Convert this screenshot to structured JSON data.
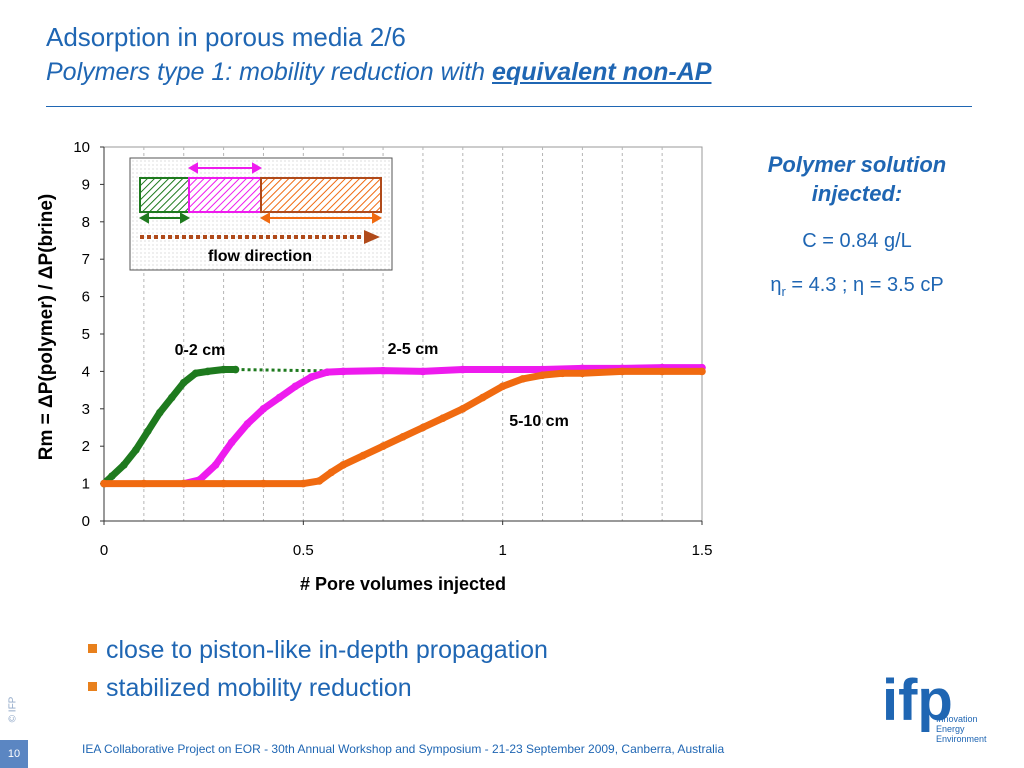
{
  "slide": {
    "title": "Adsorption in porous media 2/6",
    "subtitle_prefix": "Polymers type 1: mobility reduction with ",
    "subtitle_emph": "equivalent non-AP",
    "side_heading_1": "Polymer solution",
    "side_heading_2": "injected:",
    "concentration": "C = 0.84 g/L",
    "eta_r_symbol": "η",
    "eta_r_sub": "r",
    "eta_r_value": " = 4.3 ; ",
    "eta_symbol": "η",
    "eta_value": " = 3.5 cP",
    "bullets": [
      "close to piston-like in-depth propagation",
      "stabilized mobility reduction"
    ],
    "copyright": "© IFP",
    "page_number": "10",
    "footer": "IEA Collaborative Project on EOR - 30th Annual Workshop and Symposium - 21-23 September 2009, Canberra, Australia",
    "logo": {
      "mark": "ifp",
      "lines": [
        "Innovation",
        "Energy",
        "Environment"
      ]
    },
    "colors": {
      "blue": "#1f66b3",
      "green": "#1e7a1e",
      "magenta": "#ee1bee",
      "orange": "#f06a10",
      "brown": "#b04a1a"
    }
  },
  "chart_data": {
    "type": "scatter",
    "xlabel": "# Pore volumes injected",
    "ylabel": "Rm = ΔP(polymer) / ΔP(brine)",
    "xlim": [
      0,
      1.5
    ],
    "ylim": [
      0,
      10
    ],
    "x_ticks": [
      "0",
      "0.5",
      "1",
      "1.5"
    ],
    "y_ticks": [
      "0",
      "1",
      "2",
      "3",
      "4",
      "5",
      "6",
      "7",
      "8",
      "9",
      "10"
    ],
    "grid": "vertical dashed",
    "series": [
      {
        "name": "0-2 cm",
        "color": "#1e7a1e",
        "points": [
          [
            0.0,
            1.0
          ],
          [
            0.02,
            1.2
          ],
          [
            0.05,
            1.5
          ],
          [
            0.08,
            1.9
          ],
          [
            0.11,
            2.4
          ],
          [
            0.14,
            2.9
          ],
          [
            0.17,
            3.3
          ],
          [
            0.2,
            3.7
          ],
          [
            0.23,
            3.95
          ],
          [
            0.26,
            4.0
          ],
          [
            0.3,
            4.05
          ],
          [
            0.33,
            4.05
          ]
        ]
      },
      {
        "name": "2-5 cm",
        "color": "#ee1bee",
        "points": [
          [
            0.2,
            1.0
          ],
          [
            0.24,
            1.1
          ],
          [
            0.28,
            1.5
          ],
          [
            0.32,
            2.1
          ],
          [
            0.36,
            2.6
          ],
          [
            0.4,
            3.0
          ],
          [
            0.44,
            3.3
          ],
          [
            0.48,
            3.6
          ],
          [
            0.52,
            3.85
          ],
          [
            0.56,
            3.98
          ],
          [
            0.6,
            4.0
          ],
          [
            0.7,
            4.02
          ],
          [
            0.8,
            4.0
          ],
          [
            0.9,
            4.05
          ],
          [
            1.0,
            4.05
          ],
          [
            1.1,
            4.05
          ],
          [
            1.2,
            4.08
          ],
          [
            1.3,
            4.08
          ],
          [
            1.4,
            4.1
          ],
          [
            1.5,
            4.1
          ]
        ]
      },
      {
        "name": "5-10 cm",
        "color": "#f06a10",
        "points": [
          [
            0.0,
            1.0
          ],
          [
            0.1,
            1.0
          ],
          [
            0.2,
            1.0
          ],
          [
            0.3,
            1.0
          ],
          [
            0.4,
            1.0
          ],
          [
            0.5,
            1.0
          ],
          [
            0.54,
            1.07
          ],
          [
            0.57,
            1.3
          ],
          [
            0.6,
            1.5
          ],
          [
            0.65,
            1.75
          ],
          [
            0.7,
            2.0
          ],
          [
            0.75,
            2.25
          ],
          [
            0.8,
            2.5
          ],
          [
            0.85,
            2.75
          ],
          [
            0.9,
            3.0
          ],
          [
            0.95,
            3.3
          ],
          [
            1.0,
            3.6
          ],
          [
            1.05,
            3.8
          ],
          [
            1.1,
            3.9
          ],
          [
            1.15,
            3.95
          ],
          [
            1.2,
            3.95
          ],
          [
            1.3,
            4.0
          ],
          [
            1.4,
            4.0
          ],
          [
            1.5,
            4.0
          ]
        ]
      }
    ],
    "reference_line": {
      "color": "#1e7a1e",
      "from": [
        0.33,
        4.05
      ],
      "to": [
        0.65,
        4.0
      ]
    },
    "annotations": {
      "label_0_2": "0-2 cm",
      "label_2_5": "2-5 cm",
      "label_5_10": "5-10 cm",
      "inset_caption": "flow direction"
    }
  }
}
